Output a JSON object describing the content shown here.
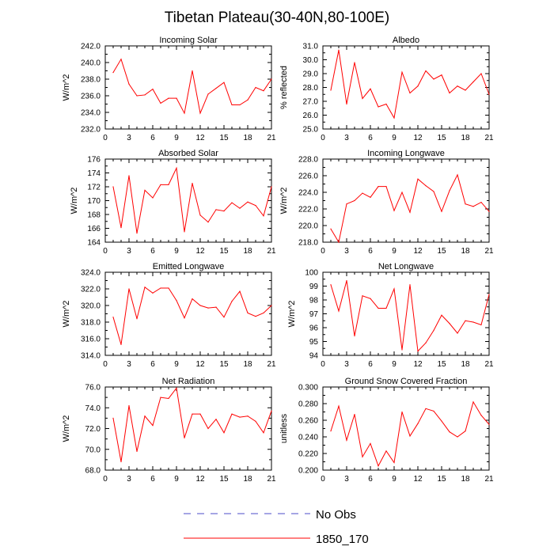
{
  "title": "Tibetan Plateau(30-40N,80-100E)",
  "legend": [
    {
      "label": "No Obs",
      "style": "dashed",
      "color": "#4d4dc8"
    },
    {
      "label": "1850_170",
      "style": "solid",
      "color": "#ff0000"
    }
  ],
  "chart_data": [
    {
      "type": "line",
      "title": "Incoming Solar",
      "ylabel": "W/m^2",
      "xlim": [
        0,
        21
      ],
      "xticks": [
        0,
        3,
        6,
        9,
        12,
        15,
        18,
        21
      ],
      "ylim": [
        232,
        242
      ],
      "yticks": [
        232,
        234,
        236,
        238,
        240,
        242
      ],
      "ydecimals": 1,
      "series": [
        {
          "name": "1850_170",
          "x": [
            1,
            2,
            3,
            4,
            5,
            6,
            7,
            8,
            9,
            10,
            11,
            12,
            13,
            14,
            15,
            16,
            17,
            18,
            19,
            20,
            21
          ],
          "values": [
            238.8,
            240.4,
            237.4,
            236.0,
            236.1,
            236.8,
            235.1,
            235.7,
            235.7,
            233.9,
            239.0,
            233.9,
            236.2,
            236.9,
            237.6,
            234.9,
            234.9,
            235.5,
            237.0,
            236.6,
            238.0
          ]
        }
      ]
    },
    {
      "type": "line",
      "title": "Albedo",
      "ylabel": "% reflected",
      "xlim": [
        0,
        21
      ],
      "xticks": [
        0,
        3,
        6,
        9,
        12,
        15,
        18,
        21
      ],
      "ylim": [
        25,
        31
      ],
      "yticks": [
        25,
        26,
        27,
        28,
        29,
        30,
        31
      ],
      "ydecimals": 1,
      "series": [
        {
          "name": "1850_170",
          "x": [
            1,
            2,
            3,
            4,
            5,
            6,
            7,
            8,
            9,
            10,
            11,
            12,
            13,
            14,
            15,
            16,
            17,
            18,
            19,
            20,
            21
          ],
          "values": [
            27.8,
            30.7,
            26.8,
            29.8,
            27.2,
            27.9,
            26.6,
            26.8,
            25.8,
            29.1,
            27.6,
            28.1,
            29.2,
            28.6,
            28.9,
            27.6,
            28.1,
            27.8,
            28.4,
            29.0,
            27.5
          ]
        }
      ]
    },
    {
      "type": "line",
      "title": "Absorbed Solar",
      "ylabel": "W/m^2",
      "xlim": [
        0,
        21
      ],
      "xticks": [
        0,
        3,
        6,
        9,
        12,
        15,
        18,
        21
      ],
      "ylim": [
        164,
        176
      ],
      "yticks": [
        164,
        166,
        168,
        170,
        172,
        174,
        176
      ],
      "ydecimals": 0,
      "series": [
        {
          "name": "1850_170",
          "x": [
            1,
            2,
            3,
            4,
            5,
            6,
            7,
            8,
            9,
            10,
            11,
            12,
            13,
            14,
            15,
            16,
            17,
            18,
            19,
            20,
            21
          ],
          "values": [
            172.0,
            166.1,
            173.6,
            165.3,
            171.5,
            170.4,
            172.3,
            172.3,
            174.7,
            165.5,
            172.5,
            167.9,
            166.9,
            168.7,
            168.5,
            169.7,
            168.9,
            169.8,
            169.3,
            167.8,
            172.0
          ]
        }
      ]
    },
    {
      "type": "line",
      "title": "Incoming Longwave",
      "ylabel": "W/m^2",
      "xlim": [
        0,
        21
      ],
      "xticks": [
        0,
        3,
        6,
        9,
        12,
        15,
        18,
        21
      ],
      "ylim": [
        218,
        228
      ],
      "yticks": [
        218,
        220,
        222,
        224,
        226,
        228
      ],
      "ydecimals": 1,
      "series": [
        {
          "name": "1850_170",
          "x": [
            1,
            2,
            3,
            4,
            5,
            6,
            7,
            8,
            9,
            10,
            11,
            12,
            13,
            14,
            15,
            16,
            17,
            18,
            19,
            20,
            21
          ],
          "values": [
            219.6,
            218.0,
            222.6,
            223.0,
            223.9,
            223.4,
            224.7,
            224.7,
            221.8,
            224.0,
            221.6,
            225.6,
            224.8,
            224.1,
            221.7,
            224.2,
            226.1,
            222.6,
            222.3,
            222.8,
            221.7
          ]
        }
      ]
    },
    {
      "type": "line",
      "title": "Emitted Longwave",
      "ylabel": "W/m^2",
      "xlim": [
        0,
        21
      ],
      "xticks": [
        0,
        3,
        6,
        9,
        12,
        15,
        18,
        21
      ],
      "ylim": [
        314,
        324
      ],
      "yticks": [
        314,
        316,
        318,
        320,
        322,
        324
      ],
      "ydecimals": 1,
      "series": [
        {
          "name": "1850_170",
          "x": [
            1,
            2,
            3,
            4,
            5,
            6,
            7,
            8,
            9,
            10,
            11,
            12,
            13,
            14,
            15,
            16,
            17,
            18,
            19,
            20,
            21
          ],
          "values": [
            318.6,
            315.3,
            322.0,
            318.4,
            322.2,
            321.5,
            322.1,
            322.1,
            320.6,
            318.5,
            320.8,
            320.0,
            319.7,
            319.8,
            318.6,
            320.5,
            321.7,
            319.1,
            318.7,
            319.1,
            320.0
          ]
        }
      ]
    },
    {
      "type": "line",
      "title": "Net Longwave",
      "ylabel": "W/m^2",
      "xlim": [
        0,
        21
      ],
      "xticks": [
        0,
        3,
        6,
        9,
        12,
        15,
        18,
        21
      ],
      "ylim": [
        94,
        100
      ],
      "yticks": [
        94,
        95,
        96,
        97,
        98,
        99,
        100
      ],
      "ydecimals": 0,
      "series": [
        {
          "name": "1850_170",
          "x": [
            1,
            2,
            3,
            4,
            5,
            6,
            7,
            8,
            9,
            10,
            11,
            12,
            13,
            14,
            15,
            16,
            17,
            18,
            19,
            20,
            21
          ],
          "values": [
            99.1,
            97.2,
            99.4,
            95.4,
            98.3,
            98.1,
            97.4,
            97.4,
            98.8,
            94.4,
            99.1,
            94.3,
            94.9,
            95.8,
            96.9,
            96.3,
            95.6,
            96.5,
            96.4,
            96.2,
            98.4
          ]
        }
      ]
    },
    {
      "type": "line",
      "title": "Net Radiation",
      "ylabel": "W/m^2",
      "xlim": [
        0,
        21
      ],
      "xticks": [
        0,
        3,
        6,
        9,
        12,
        15,
        18,
        21
      ],
      "ylim": [
        68,
        76
      ],
      "yticks": [
        68,
        70,
        72,
        74,
        76
      ],
      "ydecimals": 1,
      "series": [
        {
          "name": "1850_170",
          "x": [
            1,
            2,
            3,
            4,
            5,
            6,
            7,
            8,
            9,
            10,
            11,
            12,
            13,
            14,
            15,
            16,
            17,
            18,
            19,
            20,
            21
          ],
          "values": [
            73.0,
            68.8,
            74.2,
            69.8,
            73.2,
            72.3,
            75.0,
            74.9,
            75.9,
            71.1,
            73.4,
            73.4,
            72.0,
            72.9,
            71.6,
            73.4,
            73.1,
            73.2,
            72.7,
            71.6,
            73.7
          ]
        }
      ]
    },
    {
      "type": "line",
      "title": "Ground Snow Covered Fraction",
      "ylabel": "unitless",
      "xlim": [
        0,
        21
      ],
      "xticks": [
        0,
        3,
        6,
        9,
        12,
        15,
        18,
        21
      ],
      "ylim": [
        0.2,
        0.3
      ],
      "yticks": [
        0.2,
        0.22,
        0.24,
        0.26,
        0.28,
        0.3
      ],
      "ydecimals": 3,
      "series": [
        {
          "name": "1850_170",
          "x": [
            1,
            2,
            3,
            4,
            5,
            6,
            7,
            8,
            9,
            10,
            11,
            12,
            13,
            14,
            15,
            16,
            17,
            18,
            19,
            20,
            21
          ],
          "values": [
            0.247,
            0.277,
            0.236,
            0.267,
            0.216,
            0.232,
            0.205,
            0.223,
            0.209,
            0.27,
            0.241,
            0.256,
            0.274,
            0.271,
            0.259,
            0.246,
            0.24,
            0.247,
            0.282,
            0.266,
            0.255
          ]
        }
      ]
    }
  ]
}
